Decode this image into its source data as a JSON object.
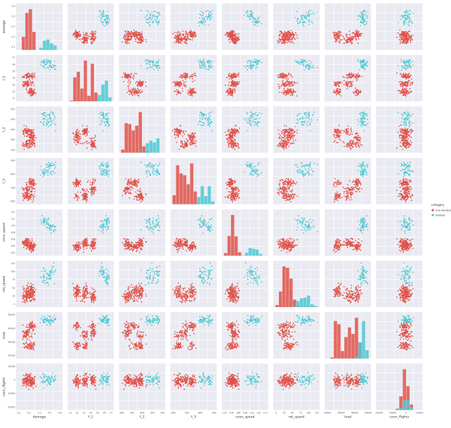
{
  "chart_data": {
    "type": "scatter",
    "kind": "pairplot",
    "diagonal": "histogram",
    "hue_field": "category",
    "legend": {
      "title": "category",
      "placement": "right",
      "entries": [
        {
          "label": "non-faulted",
          "color": "#e0534a"
        },
        {
          "label": "faulted",
          "color": "#4ec9d2"
        }
      ]
    },
    "grid": true,
    "panel_background": "#eaeaf2",
    "variables": [
      {
        "label": "damage",
        "range": [
          0,
          1.0
        ],
        "ticks": [
          "0.1",
          "0.2",
          "0.3",
          "0.5",
          "0.6"
        ],
        "red_clusters": [
          [
            0.2,
            0.05
          ],
          [
            0.32,
            0.04
          ]
        ],
        "blue_clusters": [
          [
            0.62,
            0.06
          ],
          [
            0.78,
            0.05
          ]
        ]
      },
      {
        "label": "f_1",
        "range": [
          21,
          28
        ],
        "ticks": [
          "21",
          "22",
          "23",
          "24",
          "25",
          "26",
          "27"
        ],
        "red_clusters": [
          [
            22.2,
            0.25
          ],
          [
            23.5,
            0.25
          ],
          [
            24.8,
            0.25
          ]
        ],
        "blue_clusters": [
          [
            26.4,
            0.25
          ],
          [
            27.2,
            0.2
          ]
        ]
      },
      {
        "label": "f_2",
        "range": [
          250,
          510
        ],
        "ticks": [
          "300",
          "350",
          "400",
          "450",
          "500"
        ],
        "red_clusters": [
          [
            290,
            15
          ],
          [
            330,
            18
          ],
          [
            370,
            16
          ]
        ],
        "blue_clusters": [
          [
            420,
            18
          ],
          [
            470,
            15
          ]
        ]
      },
      {
        "label": "f_3",
        "range": [
          510,
          960
        ],
        "ticks": [
          "600",
          "700",
          "800",
          "900"
        ],
        "red_clusters": [
          [
            570,
            20
          ],
          [
            640,
            20
          ],
          [
            720,
            20
          ]
        ],
        "blue_clusters": [
          [
            820,
            22
          ],
          [
            900,
            20
          ]
        ]
      },
      {
        "label": "conn_speed",
        "range": [
          100,
          116
        ],
        "ticks": [
          "102",
          "104",
          "106",
          "108",
          "110",
          "112",
          "114"
        ],
        "red_clusters": [
          [
            102.5,
            0.7
          ],
          [
            104,
            0.7
          ]
        ],
        "blue_clusters": [
          [
            110,
            0.8
          ],
          [
            112.5,
            0.7
          ]
        ]
      },
      {
        "label": "rot_speed",
        "range": [
          0,
          150
        ],
        "ticks": [
          "0",
          "25",
          "50",
          "75",
          "100",
          "125"
        ],
        "red_clusters": [
          [
            30,
            12
          ],
          [
            50,
            12
          ]
        ],
        "blue_clusters": [
          [
            95,
            12
          ],
          [
            120,
            12
          ]
        ]
      },
      {
        "label": "load",
        "range": [
          15000,
          50000
        ],
        "ticks": [
          "20000",
          "30000",
          "40000",
          "50000"
        ],
        "red_clusters": [
          [
            24000,
            1800
          ],
          [
            33000,
            2000
          ],
          [
            40000,
            1800
          ]
        ],
        "blue_clusters": [
          [
            45000,
            1800
          ]
        ]
      },
      {
        "label": "conn_flights",
        "range": [
          -22000,
          12000
        ],
        "ticks": [
          "-20000",
          "-10000",
          "0",
          "10000"
        ],
        "red_clusters": [
          [
            0,
            2500
          ]
        ],
        "blue_clusters": [
          [
            1000,
            2200
          ]
        ]
      }
    ],
    "n_points": {
      "non-faulted": 200,
      "faulted": 60
    }
  }
}
